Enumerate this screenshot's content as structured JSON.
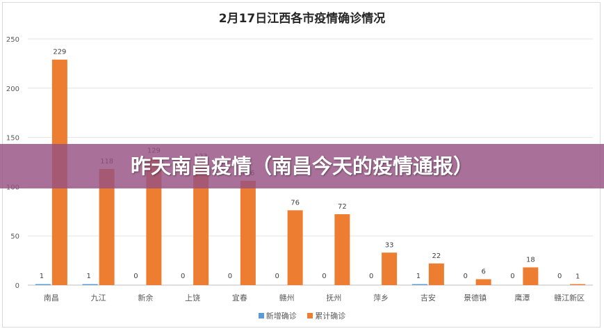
{
  "colors": {
    "new_series": "#5b9bd5",
    "total_series": "#ed7d31",
    "banner": "#965282"
  },
  "banner": {
    "text": "昨天南昌疫情（南昌今天的疫情通报）"
  },
  "chart_data": {
    "type": "bar",
    "title": "2月17日江西各市疫情确诊情况",
    "categories": [
      "南昌",
      "九江",
      "新余",
      "上饶",
      "宜春",
      "赣州",
      "抚州",
      "萍乡",
      "吉安",
      "景德镇",
      "鹰潭",
      "赣江新区"
    ],
    "series": [
      {
        "name": "新增确诊",
        "values": [
          1,
          1,
          0,
          0,
          0,
          0,
          0,
          0,
          1,
          0,
          0,
          0
        ]
      },
      {
        "name": "累计确诊",
        "values": [
          229,
          118,
          129,
          123,
          106,
          76,
          72,
          33,
          22,
          6,
          18,
          1
        ]
      }
    ],
    "ylim": [
      0,
      250
    ],
    "yticks": [
      0,
      50,
      100,
      150,
      200,
      250
    ],
    "grid": true,
    "legend": "bottom"
  }
}
